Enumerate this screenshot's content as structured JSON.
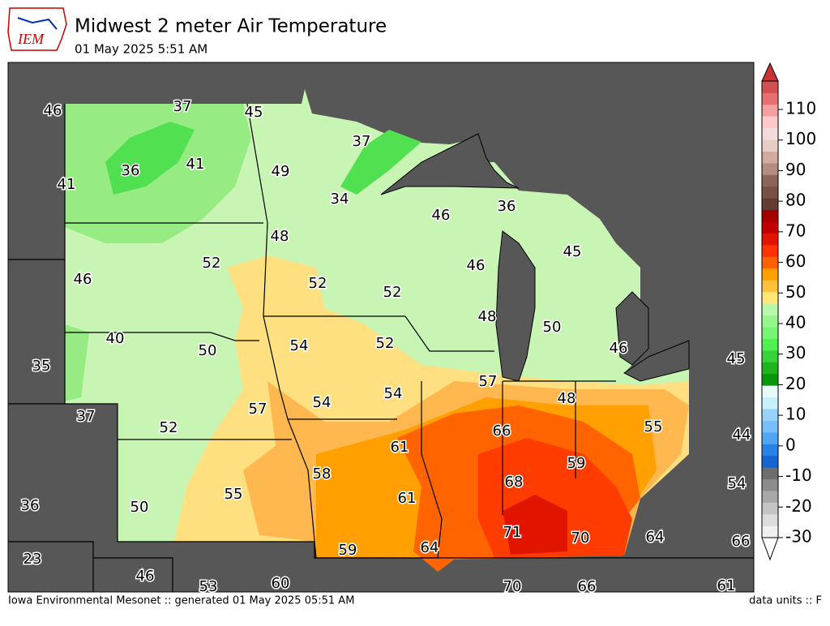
{
  "header": {
    "logo": "IEM",
    "title": "Midwest 2 meter Air Temperature",
    "subtitle": "01 May 2025 5:51 AM"
  },
  "stations": [
    46,
    37,
    45,
    41,
    36,
    41,
    37,
    49,
    34,
    46,
    36,
    48,
    52,
    46,
    45,
    46,
    52,
    52,
    48,
    50,
    40,
    54,
    52,
    50,
    46,
    35,
    45,
    57,
    54,
    54,
    48,
    37,
    57,
    52,
    55,
    66,
    44,
    61,
    59,
    58,
    68,
    55,
    61,
    54,
    36,
    50,
    71,
    70,
    64,
    66,
    59,
    64,
    23,
    46,
    53,
    60,
    70,
    66,
    61
  ],
  "colorbar": {
    "ticks": [
      -30,
      -20,
      -10,
      0,
      10,
      20,
      30,
      40,
      50,
      60,
      70,
      80,
      90,
      100,
      110
    ],
    "colors": [
      "#f0f0f0",
      "#dcdcdc",
      "#c4c4c4",
      "#a8a8a8",
      "#8c8c8c",
      "#6e6e6e",
      "#1464d2",
      "#2882e6",
      "#50a5f5",
      "#78bef8",
      "#96d2fa",
      "#c8f0fa",
      "#e6fafa",
      "#0a960a",
      "#1eb41e",
      "#37d23c",
      "#50f050",
      "#78f573",
      "#96f58c",
      "#b4faaa",
      "#ffe878",
      "#ffc03c",
      "#ffa000",
      "#ff6000",
      "#ff3200",
      "#e11400",
      "#c00000",
      "#a50000",
      "#643c32",
      "#785046",
      "#8c645a",
      "#b48c82",
      "#d2aaa0",
      "#e6cdc3",
      "#f5dcdc",
      "#ffc8c8",
      "#f5a0a0",
      "#e67070",
      "#d25050"
    ]
  },
  "footer": {
    "left": "Iowa Environmental Mesonet :: generated 01 May 2025 05:51 AM",
    "right": "data units :: F"
  }
}
